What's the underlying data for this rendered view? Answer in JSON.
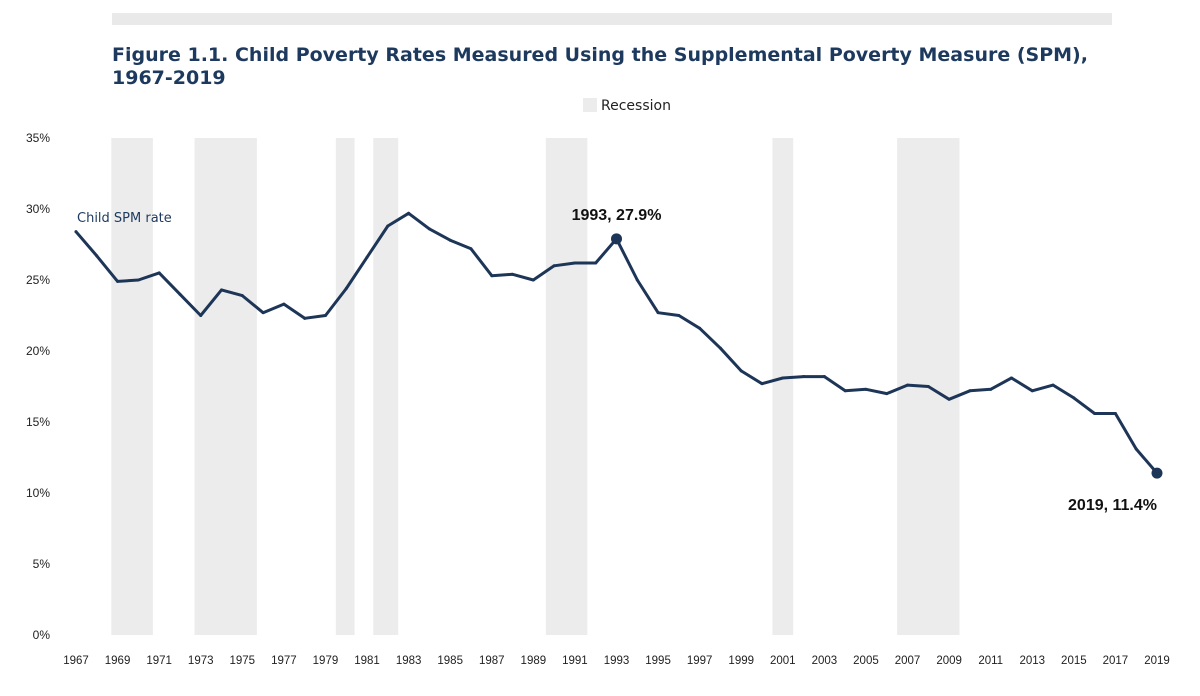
{
  "figure": {
    "title": "Figure 1.1. Child Poverty Rates Measured Using the Supplemental Poverty Measure (SPM), 1967-2019"
  },
  "colors": {
    "line": "#1d3557",
    "recession": "#ececec",
    "title": "#1d3a5e",
    "top_bar": "#e9e9e9"
  },
  "chart_data": {
    "type": "line",
    "title": "Figure 1.1. Child Poverty Rates Measured Using the Supplemental Poverty Measure (SPM), 1967-2019",
    "xlabel": "",
    "ylabel": "",
    "ylim": [
      0,
      35
    ],
    "yticks": [
      "0%",
      "5%",
      "10%",
      "15%",
      "20%",
      "25%",
      "30%",
      "35%"
    ],
    "xticks": [
      "1967",
      "1969",
      "1971",
      "1973",
      "1975",
      "1977",
      "1979",
      "1981",
      "1983",
      "1985",
      "1987",
      "1989",
      "1991",
      "1993",
      "1995",
      "1997",
      "1999",
      "2001",
      "2003",
      "2005",
      "2007",
      "2009",
      "2011",
      "2013",
      "2015",
      "2017",
      "2019"
    ],
    "grid": false,
    "legend": {
      "position": "top",
      "entries": [
        {
          "label": "Recession",
          "swatch": "recession"
        }
      ]
    },
    "recessions": [
      [
        1968.7,
        1970.7
      ],
      [
        1972.7,
        1975.7
      ],
      [
        1979.5,
        1980.4
      ],
      [
        1981.3,
        1982.5
      ],
      [
        1989.6,
        1991.6
      ],
      [
        2000.5,
        2001.5
      ],
      [
        2006.5,
        2009.5
      ]
    ],
    "series": [
      {
        "name": "Child SPM rate",
        "x": [
          1967,
          1968,
          1969,
          1970,
          1971,
          1972,
          1973,
          1974,
          1975,
          1976,
          1977,
          1978,
          1979,
          1980,
          1981,
          1982,
          1983,
          1984,
          1985,
          1986,
          1987,
          1988,
          1989,
          1990,
          1991,
          1992,
          1993,
          1994,
          1995,
          1996,
          1997,
          1998,
          1999,
          2000,
          2001,
          2002,
          2003,
          2004,
          2005,
          2006,
          2007,
          2008,
          2009,
          2010,
          2011,
          2012,
          2013,
          2014,
          2015,
          2016,
          2017,
          2018,
          2019
        ],
        "values": [
          28.4,
          26.7,
          24.9,
          25.0,
          25.5,
          24.0,
          22.5,
          24.3,
          23.9,
          22.7,
          23.3,
          22.3,
          22.5,
          24.4,
          26.6,
          28.8,
          29.7,
          28.6,
          27.8,
          27.2,
          25.3,
          25.4,
          25.0,
          26.0,
          26.2,
          26.2,
          27.9,
          25.0,
          22.7,
          22.5,
          21.6,
          20.2,
          18.6,
          17.7,
          18.1,
          18.2,
          18.2,
          17.2,
          17.3,
          17.0,
          17.6,
          17.5,
          16.6,
          17.2,
          17.3,
          18.1,
          17.2,
          17.6,
          16.7,
          15.6,
          15.6,
          13.1,
          11.4
        ]
      }
    ],
    "annotations": [
      {
        "text": "1993, 27.9%",
        "x": 1993,
        "y": 27.9
      },
      {
        "text": "2019, 11.4%",
        "x": 2019,
        "y": 11.4
      }
    ]
  }
}
